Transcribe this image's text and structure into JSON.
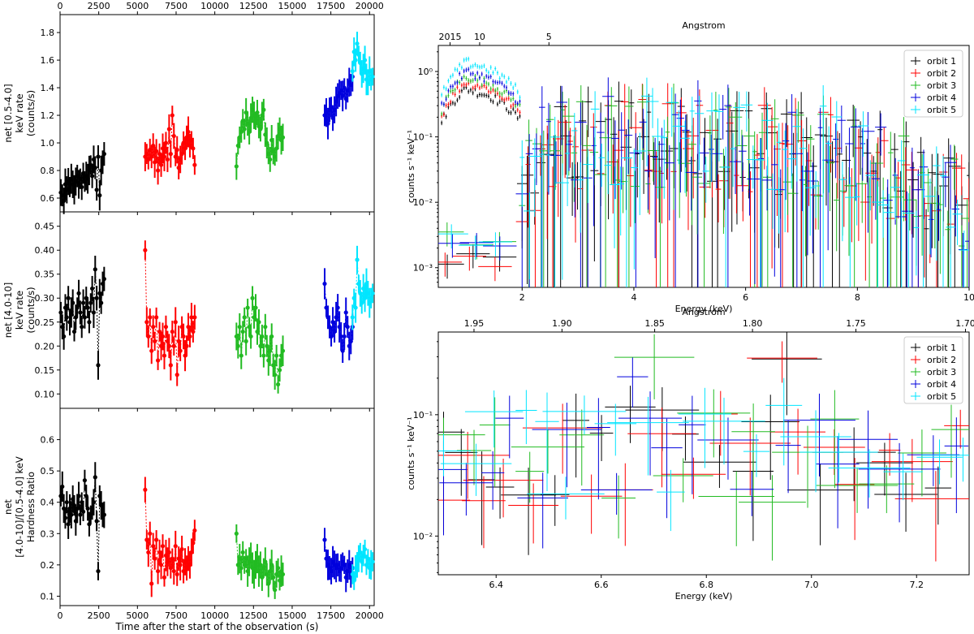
{
  "chart_data": [
    {
      "type": "scatter",
      "panel": "left-top",
      "xlabel": "",
      "ylabel": [
        "net [0.5-4.0]",
        "keV rate",
        "(counts/s)"
      ],
      "xlim": [
        0,
        20300
      ],
      "ylim": [
        0.5,
        1.93
      ],
      "xticks": [
        0,
        2500,
        5000,
        7500,
        10000,
        12500,
        15000,
        17500,
        20000
      ],
      "yticks": [
        0.6,
        0.8,
        1.0,
        1.2,
        1.4,
        1.6,
        1.8
      ],
      "ytick_labels": [
        "0.6",
        "0.8",
        "1.0",
        "1.2",
        "1.4",
        "1.6",
        "1.8"
      ],
      "top_xticks": [
        "0",
        "2500",
        "5000",
        "7500",
        "10000",
        "12500",
        "15000",
        "17500",
        "20000"
      ],
      "series": [
        {
          "color": "#000000",
          "x_start": 50,
          "x_end": 2850,
          "points": 30,
          "values": [
            0.64,
            0.62,
            0.58,
            0.7,
            0.66,
            0.72,
            0.68,
            0.74,
            0.7,
            0.66,
            0.72,
            0.76,
            0.7,
            0.74,
            0.68,
            0.78,
            0.72,
            0.76,
            0.74,
            0.8,
            0.84,
            0.76,
            0.88,
            0.82,
            0.66,
            0.9,
            0.62,
            0.8,
            0.86,
            0.92
          ]
        },
        {
          "color": "#ff0000",
          "x_start": 5500,
          "x_end": 8700,
          "points": 32,
          "values": [
            0.9,
            0.92,
            0.88,
            0.95,
            0.9,
            0.98,
            0.86,
            0.94,
            0.8,
            0.92,
            0.84,
            0.96,
            0.9,
            1.0,
            0.88,
            1.1,
            0.92,
            1.2,
            1.05,
            0.9,
            0.95,
            0.82,
            0.88,
            0.92,
            1.0,
            0.96,
            1.04,
            1.08,
            0.98,
            1.02,
            0.96,
            0.84
          ]
        },
        {
          "color": "#22bb22",
          "x_start": 11400,
          "x_end": 14400,
          "points": 30,
          "values": [
            0.83,
            0.98,
            1.04,
            1.08,
            1.16,
            1.1,
            1.22,
            1.14,
            1.08,
            1.18,
            1.24,
            1.2,
            1.16,
            1.22,
            1.12,
            1.1,
            1.2,
            1.24,
            1.06,
            1.0,
            0.92,
            0.88,
            1.02,
            0.94,
            0.9,
            0.96,
            1.05,
            1.1,
            1.02,
            1.04
          ]
        },
        {
          "color": "#0000dd",
          "x_start": 17100,
          "x_end": 18900,
          "points": 18,
          "values": [
            1.2,
            1.22,
            1.14,
            1.24,
            1.26,
            1.18,
            1.24,
            1.3,
            1.34,
            1.36,
            1.38,
            1.34,
            1.4,
            1.32,
            1.38,
            1.44,
            1.42,
            1.48
          ]
        },
        {
          "color": "#00e5ff",
          "x_start": 18900,
          "x_end": 20200,
          "points": 14,
          "values": [
            1.52,
            1.66,
            1.6,
            1.72,
            1.64,
            1.58,
            1.5,
            1.54,
            1.6,
            1.46,
            1.44,
            1.52,
            1.46,
            1.48
          ]
        }
      ]
    },
    {
      "type": "scatter",
      "panel": "left-middle",
      "xlabel": "",
      "ylabel": [
        "net [4.0-10]",
        "keV rate",
        "(counts/s)"
      ],
      "xlim": [
        0,
        20300
      ],
      "ylim": [
        0.07,
        0.48
      ],
      "yticks": [
        0.1,
        0.15,
        0.2,
        0.25,
        0.3,
        0.35,
        0.4,
        0.45
      ],
      "ytick_labels": [
        "0.10",
        "0.15",
        "0.20",
        "0.25",
        "0.30",
        "0.35",
        "0.40",
        "0.45"
      ],
      "series": [
        {
          "color": "#000000",
          "x_start": 50,
          "x_end": 2850,
          "points": 30,
          "values": [
            0.27,
            0.24,
            0.22,
            0.28,
            0.26,
            0.3,
            0.25,
            0.27,
            0.29,
            0.23,
            0.26,
            0.28,
            0.31,
            0.27,
            0.24,
            0.29,
            0.26,
            0.3,
            0.28,
            0.25,
            0.29,
            0.32,
            0.27,
            0.36,
            0.3,
            0.16,
            0.31,
            0.29,
            0.33,
            0.34
          ]
        },
        {
          "color": "#ff0000",
          "x_start": 5500,
          "x_end": 8700,
          "points": 32,
          "values": [
            0.4,
            0.25,
            0.22,
            0.26,
            0.19,
            0.24,
            0.21,
            0.26,
            0.17,
            0.23,
            0.2,
            0.22,
            0.18,
            0.24,
            0.21,
            0.2,
            0.16,
            0.23,
            0.2,
            0.25,
            0.14,
            0.21,
            0.19,
            0.24,
            0.22,
            0.18,
            0.2,
            0.24,
            0.22,
            0.26,
            0.23,
            0.26
          ]
        },
        {
          "color": "#22bb22",
          "x_start": 11400,
          "x_end": 14400,
          "points": 30,
          "values": [
            0.22,
            0.2,
            0.24,
            0.18,
            0.23,
            0.26,
            0.21,
            0.28,
            0.24,
            0.22,
            0.3,
            0.26,
            0.28,
            0.23,
            0.25,
            0.2,
            0.22,
            0.18,
            0.24,
            0.2,
            0.17,
            0.19,
            0.22,
            0.16,
            0.14,
            0.18,
            0.12,
            0.15,
            0.18,
            0.19
          ]
        },
        {
          "color": "#0000dd",
          "x_start": 17100,
          "x_end": 18900,
          "points": 18,
          "values": [
            0.33,
            0.28,
            0.26,
            0.24,
            0.22,
            0.25,
            0.23,
            0.26,
            0.28,
            0.24,
            0.22,
            0.19,
            0.22,
            0.27,
            0.24,
            0.2,
            0.21,
            0.24
          ]
        },
        {
          "color": "#00e5ff",
          "x_start": 18900,
          "x_end": 20200,
          "points": 14,
          "values": [
            0.26,
            0.3,
            0.28,
            0.38,
            0.33,
            0.31,
            0.29,
            0.32,
            0.3,
            0.33,
            0.31,
            0.29,
            0.3,
            0.31
          ]
        }
      ]
    },
    {
      "type": "scatter",
      "panel": "left-bottom",
      "xlabel": "Time after the start of the observation (s)",
      "ylabel": [
        "net",
        "[4.0-10]/[0.5-4.0] keV",
        "Hardness Ratio"
      ],
      "xlim": [
        0,
        20300
      ],
      "ylim": [
        0.07,
        0.7
      ],
      "xticks": [
        0,
        2500,
        5000,
        7500,
        10000,
        12500,
        15000,
        17500,
        20000
      ],
      "yticks": [
        0.1,
        0.2,
        0.3,
        0.4,
        0.5,
        0.6
      ],
      "ytick_labels": [
        "0.1",
        "0.2",
        "0.3",
        "0.4",
        "0.5",
        "0.6"
      ],
      "series": [
        {
          "color": "#000000",
          "x_start": 50,
          "x_end": 2850,
          "points": 30,
          "values": [
            0.42,
            0.45,
            0.38,
            0.35,
            0.4,
            0.33,
            0.38,
            0.36,
            0.41,
            0.39,
            0.34,
            0.38,
            0.42,
            0.36,
            0.4,
            0.37,
            0.47,
            0.42,
            0.38,
            0.33,
            0.36,
            0.38,
            0.4,
            0.48,
            0.34,
            0.18,
            0.42,
            0.39,
            0.36,
            0.36
          ]
        },
        {
          "color": "#ff0000",
          "x_start": 5500,
          "x_end": 8700,
          "points": 32,
          "values": [
            0.44,
            0.28,
            0.24,
            0.3,
            0.14,
            0.26,
            0.22,
            0.28,
            0.18,
            0.24,
            0.2,
            0.26,
            0.16,
            0.23,
            0.21,
            0.24,
            0.19,
            0.22,
            0.18,
            0.26,
            0.17,
            0.22,
            0.2,
            0.25,
            0.18,
            0.21,
            0.19,
            0.22,
            0.2,
            0.24,
            0.27,
            0.31
          ]
        },
        {
          "color": "#22bb22",
          "x_start": 11400,
          "x_end": 14400,
          "points": 30,
          "values": [
            0.3,
            0.2,
            0.22,
            0.19,
            0.24,
            0.2,
            0.22,
            0.18,
            0.21,
            0.23,
            0.19,
            0.17,
            0.2,
            0.22,
            0.18,
            0.2,
            0.16,
            0.19,
            0.21,
            0.17,
            0.14,
            0.18,
            0.2,
            0.16,
            0.12,
            0.17,
            0.19,
            0.15,
            0.18,
            0.17
          ]
        },
        {
          "color": "#0000dd",
          "x_start": 17100,
          "x_end": 18900,
          "points": 18,
          "values": [
            0.28,
            0.22,
            0.2,
            0.19,
            0.18,
            0.21,
            0.2,
            0.19,
            0.2,
            0.18,
            0.19,
            0.21,
            0.2,
            0.16,
            0.18,
            0.2,
            0.17,
            0.19
          ]
        },
        {
          "color": "#00e5ff",
          "x_start": 18900,
          "x_end": 20200,
          "points": 14,
          "values": [
            0.17,
            0.15,
            0.19,
            0.2,
            0.22,
            0.24,
            0.21,
            0.23,
            0.25,
            0.2,
            0.22,
            0.19,
            0.2,
            0.21
          ]
        }
      ]
    },
    {
      "type": "scatter",
      "panel": "right-top",
      "title": "Angstrom",
      "xlabel": "Energy (keV)",
      "ylabel": "counts s⁻¹ keV⁻¹",
      "xlim": [
        0.5,
        10
      ],
      "ylim": [
        0.0005,
        2.5
      ],
      "yscale": "log",
      "xticks": [
        2,
        4,
        6,
        8,
        10
      ],
      "yticks": [
        0.001,
        0.01,
        0.1,
        1
      ],
      "ytick_labels": [
        "10⁻³",
        "10⁻²",
        "10⁻¹",
        "10⁰"
      ],
      "top_ticks": [
        {
          "label": "2015",
          "energy": 0.71
        },
        {
          "label": "10",
          "energy": 1.24
        },
        {
          "label": "5",
          "energy": 2.48
        }
      ],
      "legend": [
        "orbit 1",
        "orbit 2",
        "orbit 3",
        "orbit 4",
        "orbit 5"
      ],
      "legend_position": "top-right",
      "series": [
        {
          "name": "orbit 1",
          "color": "#000000",
          "soft_peak": 0.55,
          "level_mid": 0.08,
          "low_floor": 0.0015
        },
        {
          "name": "orbit 2",
          "color": "#ff0000",
          "soft_peak": 0.7,
          "level_mid": 0.08,
          "low_floor": 0.0012
        },
        {
          "name": "orbit 3",
          "color": "#22bb22",
          "soft_peak": 0.85,
          "level_mid": 0.08,
          "low_floor": 0.003
        },
        {
          "name": "orbit 4",
          "color": "#0000dd",
          "soft_peak": 1.0,
          "level_mid": 0.085,
          "low_floor": 0.0022
        },
        {
          "name": "orbit 5",
          "color": "#00e5ff",
          "soft_peak": 1.4,
          "level_mid": 0.09,
          "low_floor": 0.0028
        }
      ]
    },
    {
      "type": "scatter",
      "panel": "right-bottom",
      "title": "Angstrom",
      "xlabel": "Energy (keV)",
      "ylabel": "counts s⁻¹ keV⁻¹",
      "xlim": [
        6.29,
        7.3
      ],
      "ylim": [
        0.0048,
        0.48
      ],
      "yscale": "log",
      "xticks": [
        6.4,
        6.6,
        6.8,
        7.0,
        7.2
      ],
      "xtick_labels": [
        "6.4",
        "6.6",
        "6.8",
        "7.0",
        "7.2"
      ],
      "yticks": [
        0.01,
        0.1
      ],
      "ytick_labels": [
        "10⁻²",
        "10⁻¹"
      ],
      "top_ticks": [
        {
          "label": "1.95",
          "energy": 6.3579
        },
        {
          "label": "1.90",
          "energy": 6.5253
        },
        {
          "label": "1.85",
          "energy": 6.7017
        },
        {
          "label": "1.80",
          "energy": 6.8878
        },
        {
          "label": "1.75",
          "energy": 7.0846
        },
        {
          "label": "1.70",
          "energy": 7.293
        }
      ],
      "legend": [
        "orbit 1",
        "orbit 2",
        "orbit 3",
        "orbit 4",
        "orbit 5"
      ],
      "legend_position": "top-right",
      "series": [
        {
          "name": "orbit 1",
          "color": "#000000"
        },
        {
          "name": "orbit 2",
          "color": "#ff0000"
        },
        {
          "name": "orbit 3",
          "color": "#22bb22"
        },
        {
          "name": "orbit 4",
          "color": "#0000dd"
        },
        {
          "name": "orbit 5",
          "color": "#00e5ff"
        }
      ]
    }
  ]
}
